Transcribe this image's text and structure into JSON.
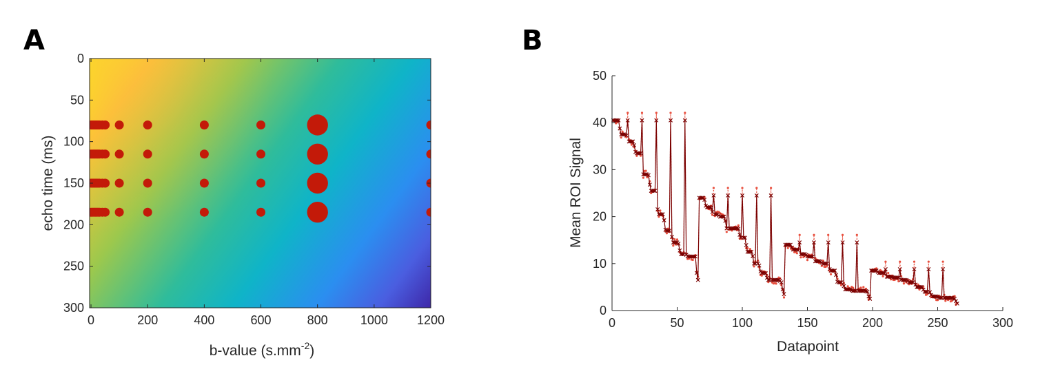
{
  "panels": {
    "a": {
      "label": "A"
    },
    "b": {
      "label": "B"
    }
  },
  "chart_data": [
    {
      "type": "scatter",
      "panel": "A",
      "background": "colormap gradient (parula: yellow at low b-value / low echo time, dark blue at high b-value / high echo time)",
      "xlabel_main": "b-value (s.mm",
      "xlabel_sup": "-2",
      "xlabel_close": ")",
      "ylabel": "echo time (ms)",
      "xlim": [
        -5,
        1200
      ],
      "ylim": [
        0,
        300
      ],
      "y_reversed": true,
      "xticks": [
        0,
        200,
        400,
        600,
        800,
        1000,
        1200
      ],
      "yticks": [
        0,
        50,
        100,
        150,
        200,
        250,
        300
      ],
      "marker_color": "#c31a09",
      "b_values": [
        0,
        5,
        10,
        15,
        20,
        25,
        30,
        40,
        50,
        100,
        200,
        400,
        600,
        800,
        1200
      ],
      "marker_weights": [
        1,
        1,
        1,
        1,
        1,
        1,
        1,
        1,
        1,
        1,
        1,
        1,
        1,
        3,
        1
      ],
      "echo_times": [
        80,
        115,
        150,
        185
      ]
    },
    {
      "type": "line",
      "panel": "B",
      "xlabel": "Datapoint",
      "ylabel": "Mean ROI Signal",
      "xlim": [
        0,
        300
      ],
      "ylim": [
        0,
        50
      ],
      "xticks": [
        0,
        50,
        100,
        150,
        200,
        250,
        300
      ],
      "yticks": [
        0,
        10,
        20,
        30,
        40,
        50
      ],
      "color_measured": "#e8503f",
      "color_fit": "#7a0000",
      "blocks": [
        {
          "start": 1,
          "end": 66,
          "base": [
            40.5,
            37.5,
            36.0,
            33.5,
            29.0,
            25.5,
            20.5,
            17.0,
            14.5,
            12.0,
            11.5,
            11.5
          ],
          "spikes": [
            12,
            23,
            34,
            45,
            56
          ],
          "spike_value": 40.5,
          "tail": [
            8.0,
            6.5
          ]
        },
        {
          "start": 67,
          "end": 132,
          "base": [
            24.0,
            22.0,
            20.5,
            20.0,
            17.5,
            17.5,
            15.5,
            12.5,
            10.0,
            8.0,
            6.5,
            6.5,
            6.0
          ],
          "spikes": [
            78,
            89,
            100,
            111,
            122
          ],
          "spike_value": 24.5,
          "tail": [
            4.5,
            3.5
          ]
        },
        {
          "start": 133,
          "end": 198,
          "base": [
            14.0,
            13.0,
            12.0,
            11.5,
            10.5,
            10.0,
            8.5,
            6.0,
            4.5,
            4.2,
            4.2,
            4.0
          ],
          "spikes": [
            144,
            155,
            166,
            177,
            188
          ],
          "spike_value": 14.5,
          "tail": [
            3.0,
            2.5
          ]
        },
        {
          "start": 199,
          "end": 265,
          "base": [
            8.5,
            8.0,
            7.2,
            7.0,
            6.5,
            6.0,
            5.0,
            4.0,
            3.0,
            2.7,
            2.7,
            2.5
          ],
          "spikes": [
            210,
            221,
            232,
            243,
            254
          ],
          "spike_value": 8.8,
          "tail": [
            2.0,
            1.5
          ]
        }
      ]
    }
  ]
}
